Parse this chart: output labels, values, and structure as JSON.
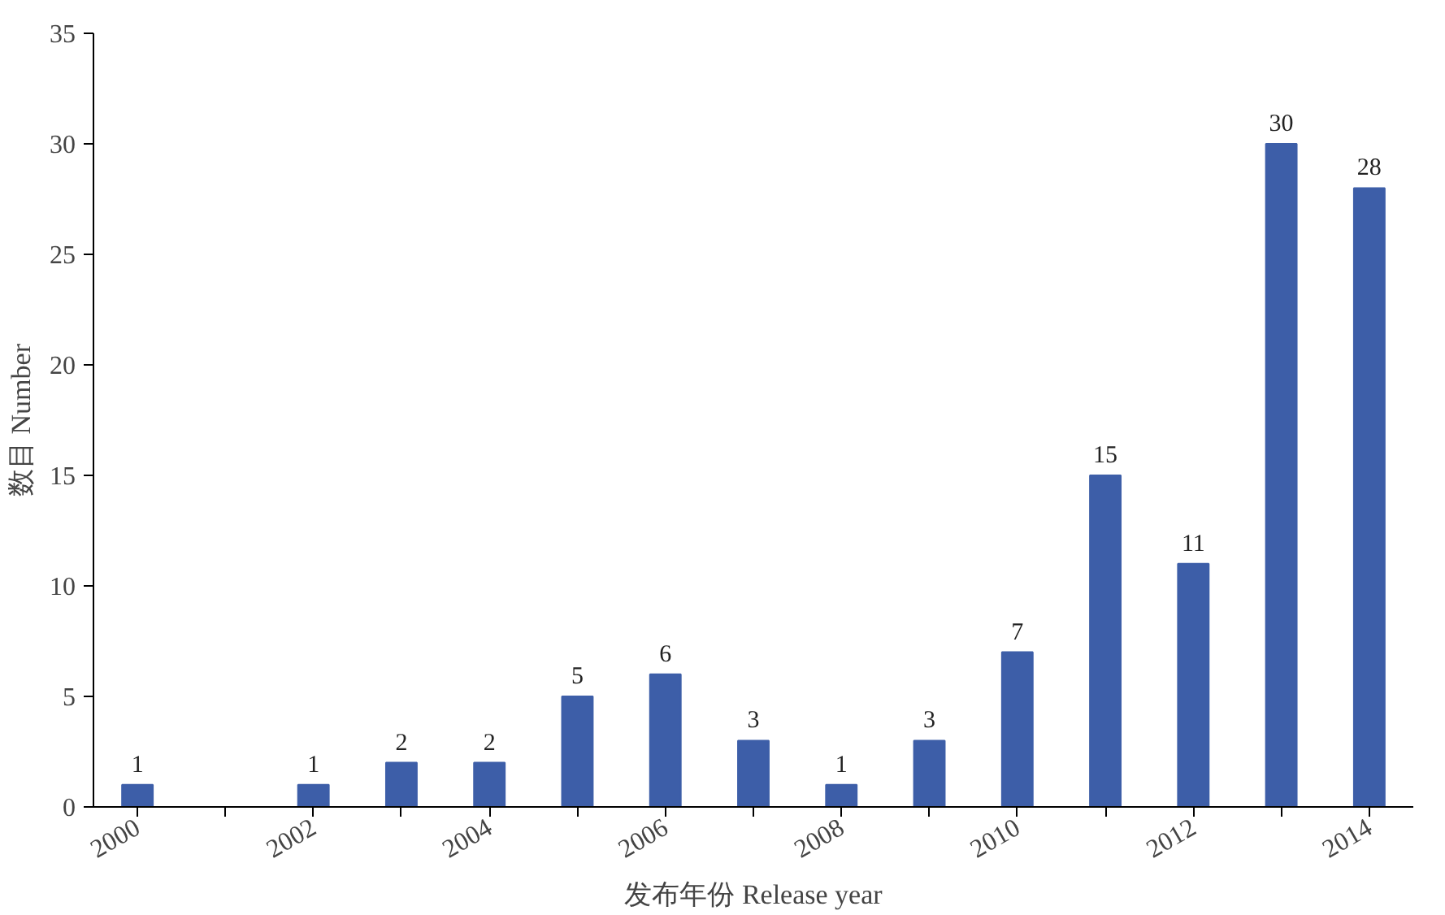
{
  "chart_data": {
    "type": "bar",
    "xlabel": "发布年份 Release year",
    "ylabel": "数目 Number",
    "categories": [
      "2000",
      null,
      "2002",
      null,
      "2004",
      null,
      "2006",
      null,
      "2008",
      null,
      "2010",
      null,
      "2012",
      null,
      "2014"
    ],
    "values": [
      1,
      0,
      1,
      2,
      2,
      5,
      6,
      3,
      1,
      3,
      7,
      15,
      11,
      30,
      28
    ],
    "value_labels": [
      "1",
      null,
      "1",
      "2",
      "2",
      "5",
      "6",
      "3",
      "1",
      "3",
      "7",
      "15",
      "11",
      "30",
      "28"
    ],
    "color": "#3d5ea8",
    "ylim": [
      0,
      35
    ],
    "yticks": [
      0,
      5,
      10,
      15,
      20,
      25,
      30,
      35
    ],
    "grid": false
  }
}
